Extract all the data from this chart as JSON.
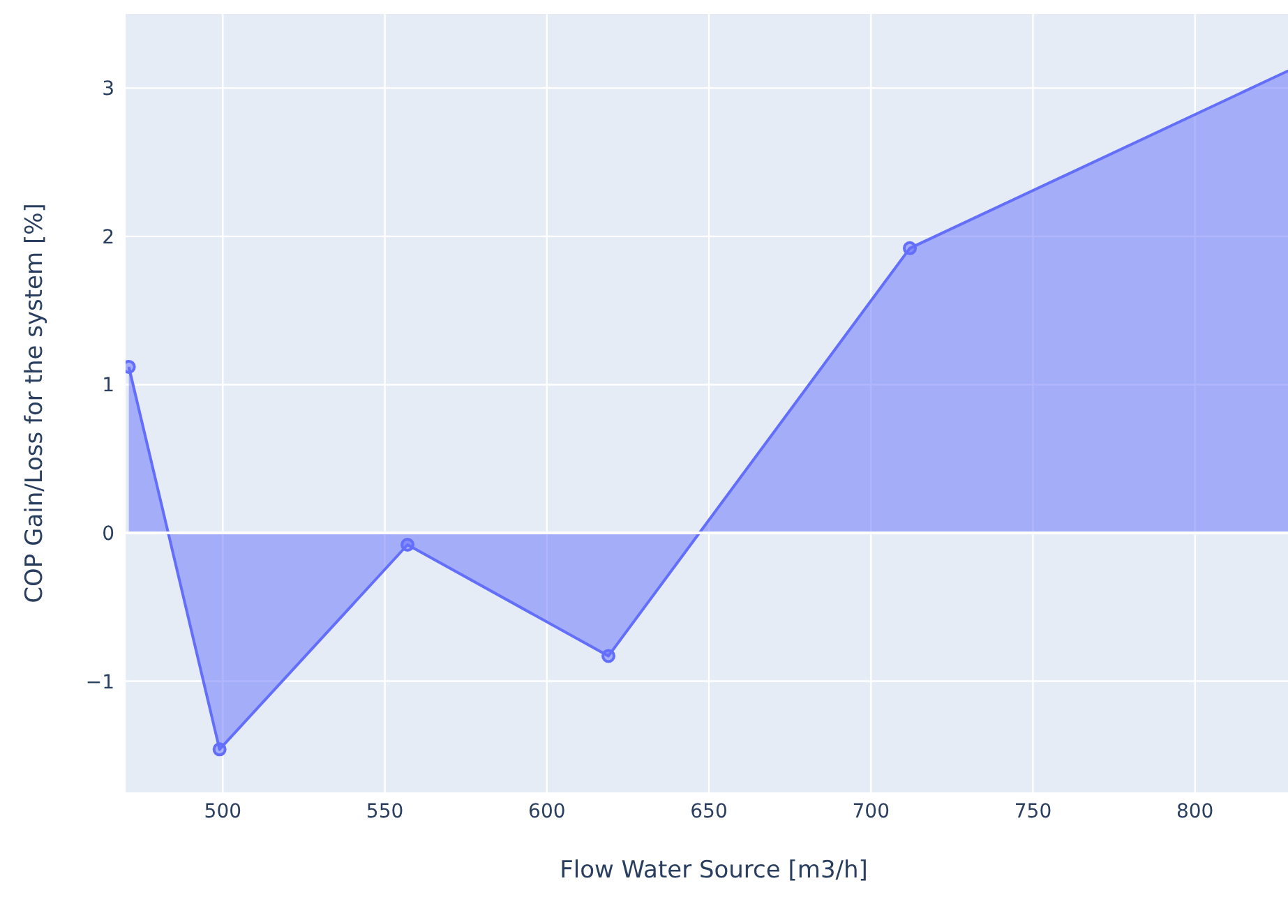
{
  "chart_data": {
    "type": "area",
    "xlabel": "Flow Water Source [m3/h]",
    "ylabel": "COP Gain/Loss for the system [%]",
    "x": [
      471,
      499,
      557,
      619,
      712,
      833
    ],
    "series": [
      {
        "color": "#636efa",
        "values": [
          1.12,
          -1.46,
          -0.08,
          -0.83,
          1.92,
          3.16
        ]
      }
    ],
    "xlim": [
      470,
      833
    ],
    "xticks": [
      500,
      550,
      600,
      650,
      700,
      750,
      800
    ],
    "ylim": [
      -1.75,
      3.5
    ],
    "yticks": [
      {
        "value": -1,
        "label": "−1"
      },
      0,
      1,
      2,
      3
    ],
    "grid": true,
    "marker": "circle",
    "line_style": "solid"
  }
}
